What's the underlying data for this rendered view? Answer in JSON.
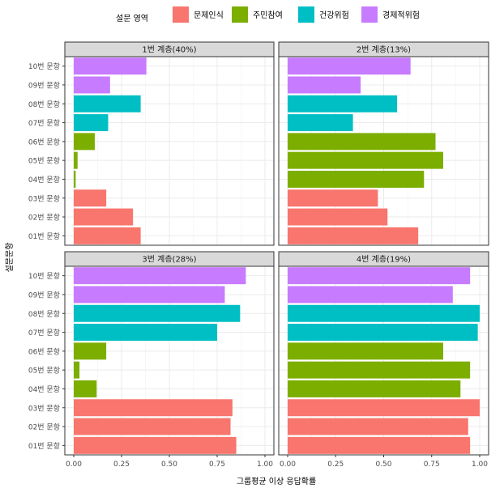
{
  "chart_data": {
    "type": "bar",
    "orientation": "horizontal",
    "legend": {
      "title": "설문 영역",
      "position": "top",
      "entries": [
        {
          "name": "문제인식",
          "color": "#F8766D"
        },
        {
          "name": "주민참여",
          "color": "#7CAE00"
        },
        {
          "name": "건강위험",
          "color": "#00BFC4"
        },
        {
          "name": "경제적위험",
          "color": "#C77CFF"
        }
      ]
    },
    "xlabel": "그룹평균 이상 응답확률",
    "ylabel": "설문문항",
    "xlim": [
      0,
      1
    ],
    "xticks": [
      "0.00",
      "0.25",
      "0.50",
      "0.75",
      "1.00"
    ],
    "grid": true,
    "categories": [
      "01번 문항",
      "02번 문항",
      "03번 문항",
      "04번 문항",
      "05번 문항",
      "06번 문항",
      "07번 문항",
      "08번 문항",
      "09번 문항",
      "10번 문항"
    ],
    "category_groups": [
      "문제인식",
      "문제인식",
      "문제인식",
      "주민참여",
      "주민참여",
      "주민참여",
      "건강위험",
      "건강위험",
      "경제적위험",
      "경제적위험"
    ],
    "panels": [
      {
        "title": "1번 계층(40%)",
        "values": [
          0.35,
          0.31,
          0.17,
          0.01,
          0.02,
          0.11,
          0.18,
          0.35,
          0.19,
          0.38
        ]
      },
      {
        "title": "2번 계층(13%)",
        "values": [
          0.68,
          0.52,
          0.47,
          0.71,
          0.81,
          0.77,
          0.34,
          0.57,
          0.38,
          0.64
        ]
      },
      {
        "title": "3번 계층(28%)",
        "values": [
          0.85,
          0.82,
          0.83,
          0.12,
          0.03,
          0.17,
          0.75,
          0.87,
          0.79,
          0.9
        ]
      },
      {
        "title": "4번 계층(19%)",
        "values": [
          0.95,
          0.94,
          1.0,
          0.9,
          0.95,
          0.81,
          0.99,
          1.0,
          0.86,
          0.95
        ]
      }
    ]
  }
}
